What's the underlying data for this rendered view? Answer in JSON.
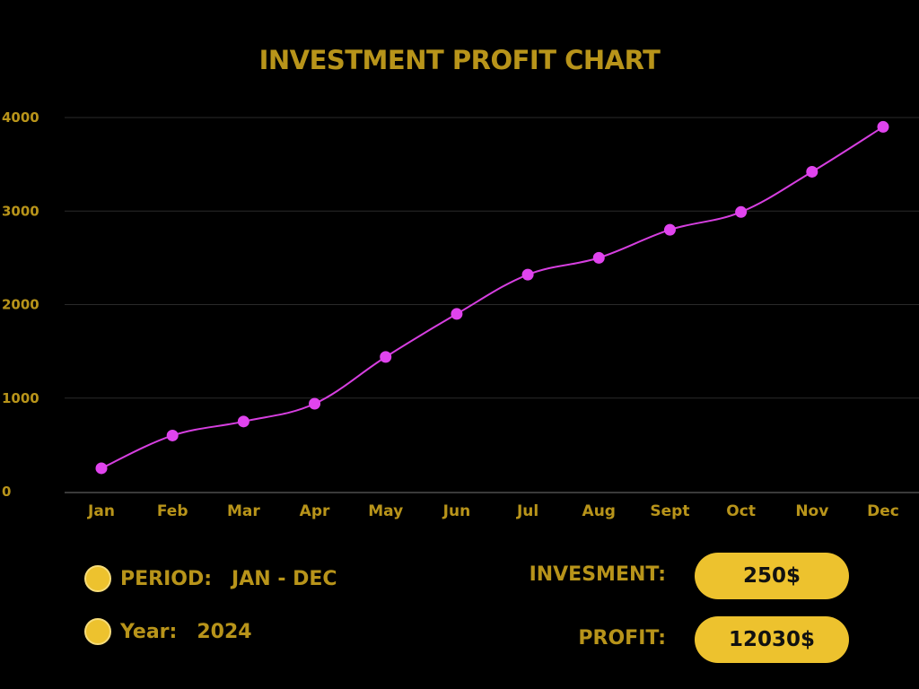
{
  "chart_data": {
    "type": "line",
    "title": "INVESTMENT PROFIT CHART",
    "categories": [
      "Jan",
      "Feb",
      "Mar",
      "Apr",
      "May",
      "Jun",
      "Jul",
      "Aug",
      "Sept",
      "Oct",
      "Nov",
      "Dec"
    ],
    "values": [
      250,
      600,
      750,
      940,
      1440,
      1900,
      2320,
      2500,
      2800,
      2990,
      3420,
      3900
    ],
    "yticks": [
      0,
      1000,
      2000,
      3000,
      4000
    ],
    "ylim": [
      0,
      4000
    ],
    "grid": true,
    "xlabel": "",
    "ylabel": ""
  },
  "colors": {
    "background": "#000000",
    "title": "#b8941a",
    "axis_text": "#b8941a",
    "line": "#d63fe0",
    "marker": "#e044ee",
    "gridline": "#2a2a2a",
    "baseline": "#3a3a3a",
    "accent": "#edc22e"
  },
  "legend": {
    "period_label": "PERIOD:",
    "period_value": "JAN - DEC",
    "year_label": "Year:",
    "year_value": "2024",
    "dot_icon": "circle-bullet-icon"
  },
  "summary": {
    "investment_label": "INVESMENT:",
    "investment_value": "250$",
    "profit_label": "PROFIT:",
    "profit_value": "12030$"
  }
}
